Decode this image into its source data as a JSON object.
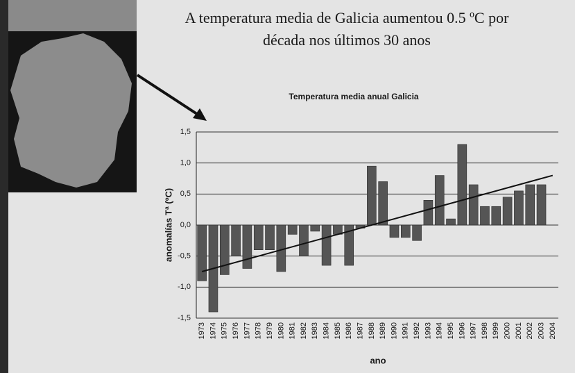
{
  "slide": {
    "title": [
      "A temperatura media de Galicia aumentou 0.5 ºC por",
      "década nos últimos 30 anos"
    ]
  },
  "chart_data": {
    "type": "bar",
    "title": "Temperatura media anual Galicia",
    "x_label": "ano",
    "y_label": "anomalías Tª (ºC)",
    "categories": [
      "1973",
      "1974",
      "1975",
      "1976",
      "1977",
      "1978",
      "1979",
      "1980",
      "1981",
      "1982",
      "1983",
      "1984",
      "1985",
      "1986",
      "1987",
      "1988",
      "1989",
      "1990",
      "1991",
      "1992",
      "1993",
      "1994",
      "1995",
      "1996",
      "1997",
      "1998",
      "1999",
      "2000",
      "2001",
      "2002",
      "2003",
      "2004"
    ],
    "values": [
      -0.9,
      -1.4,
      -0.8,
      -0.5,
      -0.7,
      -0.4,
      -0.4,
      -0.75,
      -0.15,
      -0.5,
      -0.1,
      -0.65,
      -0.15,
      -0.65,
      -0.05,
      0.95,
      0.7,
      -0.2,
      -0.2,
      -0.25,
      0.4,
      0.8,
      0.1,
      1.3,
      0.65,
      0.3,
      0.3,
      0.45,
      0.55,
      0.65,
      0.65,
      null
    ],
    "color": "#555555",
    "trend": {
      "start": -0.75,
      "end": 0.8
    },
    "ylim": [
      -1.5,
      1.5
    ],
    "yticks": [
      {
        "value": -1.5,
        "label": "-1,5"
      },
      {
        "value": -1,
        "label": "-1,0"
      },
      {
        "value": -0.5,
        "label": "-0,5"
      },
      {
        "value": 0,
        "label": "0,0"
      },
      {
        "value": 0.5,
        "label": "0,5"
      },
      {
        "value": 1,
        "label": "1,0"
      },
      {
        "value": 1.5,
        "label": "1,5"
      }
    ],
    "grid": true
  }
}
